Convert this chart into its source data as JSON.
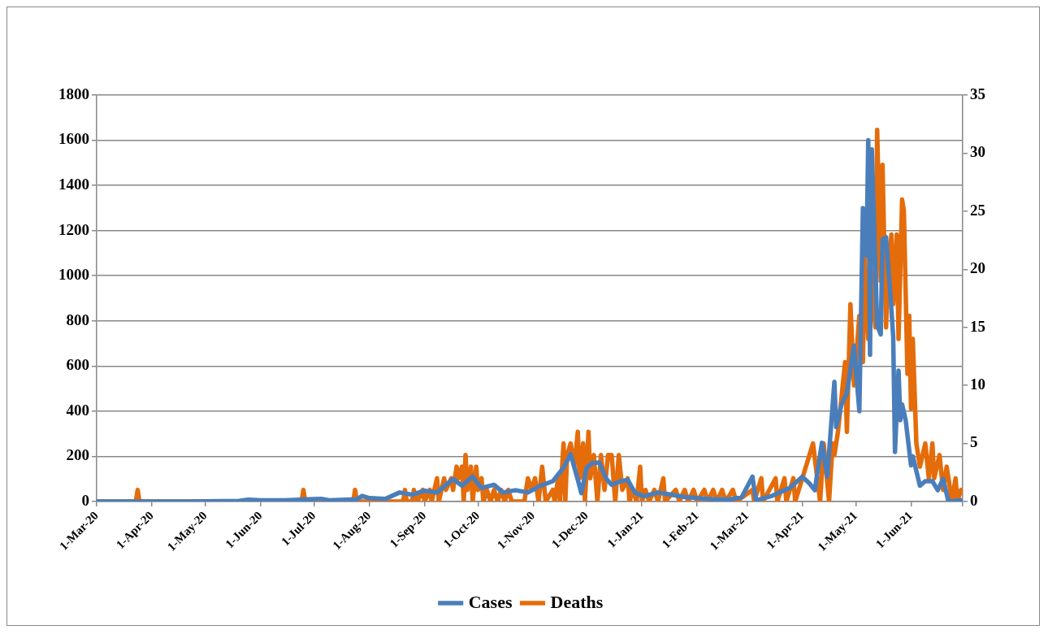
{
  "chart_data": {
    "type": "line",
    "grid": "y",
    "legend": "bottom",
    "marker": "none",
    "line_style": "solid",
    "xlim": [
      "2020-03-01",
      "2021-06-30"
    ],
    "xticks": [
      {
        "value": "2020-03-01",
        "label": "1-Mar-20"
      },
      {
        "value": "2020-04-01",
        "label": "1-Apr-20"
      },
      {
        "value": "2020-05-01",
        "label": "1-May-20"
      },
      {
        "value": "2020-06-01",
        "label": "1-Jun-20"
      },
      {
        "value": "2020-07-01",
        "label": "1-Jul-20"
      },
      {
        "value": "2020-08-01",
        "label": "1-Aug-20"
      },
      {
        "value": "2020-09-01",
        "label": "1-Sep-20"
      },
      {
        "value": "2020-10-01",
        "label": "1-Oct-20"
      },
      {
        "value": "2020-11-01",
        "label": "1-Nov-20"
      },
      {
        "value": "2020-12-01",
        "label": "1-Dec-20"
      },
      {
        "value": "2021-01-01",
        "label": "1-Jan-21"
      },
      {
        "value": "2021-02-01",
        "label": "1-Feb-21"
      },
      {
        "value": "2021-03-01",
        "label": "1-Mar-21"
      },
      {
        "value": "2021-04-01",
        "label": "1-Apr-21"
      },
      {
        "value": "2021-05-01",
        "label": "1-May-21"
      },
      {
        "value": "2021-06-01",
        "label": "1-Jun-21"
      },
      {
        "value": "2021-06-30",
        "label": null
      }
    ],
    "ylim": [
      0,
      1800
    ],
    "yticks": [
      0,
      200,
      400,
      600,
      800,
      1000,
      1200,
      1400,
      1600,
      1800
    ],
    "y2lim": [
      0,
      35
    ],
    "y2ticks": [
      0,
      5,
      10,
      15,
      20,
      25,
      30,
      35
    ],
    "series": [
      {
        "name": "Cases",
        "color": "#4a7ebb",
        "x": [
          "2020-03-01",
          "2020-04-20",
          "2020-05-20",
          "2020-05-25",
          "2020-06-01",
          "2020-06-15",
          "2020-06-28",
          "2020-07-05",
          "2020-07-10",
          "2020-07-25",
          "2020-07-28",
          "2020-08-01",
          "2020-08-10",
          "2020-08-18",
          "2020-08-25",
          "2020-09-01",
          "2020-09-08",
          "2020-09-17",
          "2020-09-22",
          "2020-09-28",
          "2020-10-03",
          "2020-10-10",
          "2020-10-15",
          "2020-10-22",
          "2020-10-29",
          "2020-11-05",
          "2020-11-12",
          "2020-11-18",
          "2020-11-22",
          "2020-11-26",
          "2020-11-28",
          "2020-12-01",
          "2020-12-04",
          "2020-12-08",
          "2020-12-12",
          "2020-12-15",
          "2020-12-20",
          "2020-12-24",
          "2020-12-28",
          "2021-01-02",
          "2021-01-10",
          "2021-01-18",
          "2021-01-25",
          "2021-02-01",
          "2021-02-10",
          "2021-02-20",
          "2021-02-26",
          "2021-03-04",
          "2021-03-06",
          "2021-03-15",
          "2021-03-25",
          "2021-04-01",
          "2021-04-05",
          "2021-04-08",
          "2021-04-12",
          "2021-04-15",
          "2021-04-19",
          "2021-04-20",
          "2021-04-23",
          "2021-04-26",
          "2021-04-30",
          "2021-05-03",
          "2021-05-05",
          "2021-05-07",
          "2021-05-08",
          "2021-05-09",
          "2021-05-10",
          "2021-05-13",
          "2021-05-15",
          "2021-05-16",
          "2021-05-18",
          "2021-05-21",
          "2021-05-22",
          "2021-05-23",
          "2021-05-25",
          "2021-05-26",
          "2021-05-27",
          "2021-05-29",
          "2021-06-01",
          "2021-06-02",
          "2021-06-06",
          "2021-06-09",
          "2021-06-13",
          "2021-06-16",
          "2021-06-19",
          "2021-06-22",
          "2021-06-29"
        ],
        "values": [
          0,
          0,
          3,
          8,
          5,
          5,
          10,
          12,
          5,
          10,
          25,
          15,
          12,
          40,
          30,
          48,
          40,
          100,
          70,
          110,
          60,
          74,
          40,
          50,
          40,
          70,
          90,
          150,
          210,
          96,
          37,
          150,
          170,
          173,
          100,
          74,
          90,
          96,
          40,
          23,
          40,
          30,
          20,
          15,
          10,
          10,
          20,
          110,
          5,
          25,
          60,
          110,
          80,
          50,
          260,
          110,
          530,
          330,
          430,
          480,
          690,
          400,
          1300,
          1090,
          1600,
          650,
          1560,
          780,
          740,
          1160,
          1170,
          850,
          730,
          220,
          580,
          360,
          430,
          360,
          160,
          200,
          70,
          90,
          90,
          50,
          100,
          0,
          5
        ]
      },
      {
        "name": "Deaths",
        "color": "#e46c0a",
        "axis": "y2",
        "x": [
          "2020-03-01",
          "2020-03-23",
          "2020-03-24",
          "2020-03-25",
          "2020-06-24",
          "2020-06-25",
          "2020-06-26",
          "2020-07-23",
          "2020-07-24",
          "2020-07-25",
          "2020-08-20",
          "2020-08-21",
          "2020-08-22",
          "2020-08-25",
          "2020-08-26",
          "2020-08-28",
          "2020-08-31",
          "2020-09-01",
          "2020-09-04",
          "2020-09-05",
          "2020-09-08",
          "2020-09-09",
          "2020-09-12",
          "2020-09-13",
          "2020-09-16",
          "2020-09-17",
          "2020-09-19",
          "2020-09-20",
          "2020-09-22",
          "2020-09-23",
          "2020-09-24",
          "2020-09-25",
          "2020-09-27",
          "2020-09-28",
          "2020-09-30",
          "2020-10-01",
          "2020-10-03",
          "2020-10-04",
          "2020-10-06",
          "2020-10-08",
          "2020-10-10",
          "2020-10-12",
          "2020-10-14",
          "2020-10-16",
          "2020-10-18",
          "2020-10-20",
          "2020-10-27",
          "2020-10-29",
          "2020-10-31",
          "2020-11-02",
          "2020-11-04",
          "2020-11-06",
          "2020-11-08",
          "2020-11-12",
          "2020-11-13",
          "2020-11-15",
          "2020-11-16",
          "2020-11-18",
          "2020-11-19",
          "2020-11-20",
          "2020-11-22",
          "2020-11-24",
          "2020-11-26",
          "2020-11-27",
          "2020-11-29",
          "2020-11-30",
          "2020-12-02",
          "2020-12-03",
          "2020-12-05",
          "2020-12-07",
          "2020-12-09",
          "2020-12-11",
          "2020-12-13",
          "2020-12-15",
          "2020-12-17",
          "2020-12-19",
          "2020-12-21",
          "2020-12-24",
          "2020-12-25",
          "2020-12-27",
          "2020-12-29",
          "2020-12-31",
          "2021-01-01",
          "2021-01-03",
          "2021-01-05",
          "2021-01-08",
          "2021-01-10",
          "2021-01-13",
          "2021-01-14",
          "2021-01-20",
          "2021-01-22",
          "2021-01-25",
          "2021-01-27",
          "2021-01-30",
          "2021-02-01",
          "2021-02-05",
          "2021-02-07",
          "2021-02-10",
          "2021-02-12",
          "2021-02-15",
          "2021-02-17",
          "2021-02-21",
          "2021-02-23",
          "2021-03-04",
          "2021-03-05",
          "2021-03-09",
          "2021-03-10",
          "2021-03-17",
          "2021-03-18",
          "2021-03-22",
          "2021-03-23",
          "2021-03-27",
          "2021-03-28",
          "2021-04-07",
          "2021-04-11",
          "2021-04-13",
          "2021-04-16",
          "2021-04-18",
          "2021-04-19",
          "2021-04-21",
          "2021-04-23",
          "2021-04-25",
          "2021-04-26",
          "2021-04-28",
          "2021-04-30",
          "2021-05-03",
          "2021-05-05",
          "2021-05-06",
          "2021-05-08",
          "2021-05-09",
          "2021-05-12",
          "2021-05-13",
          "2021-05-15",
          "2021-05-16",
          "2021-05-18",
          "2021-05-19",
          "2021-05-21",
          "2021-05-22",
          "2021-05-24",
          "2021-05-25",
          "2021-05-27",
          "2021-05-28",
          "2021-05-30",
          "2021-05-31",
          "2021-06-01",
          "2021-06-02",
          "2021-06-04",
          "2021-06-06",
          "2021-06-09",
          "2021-06-11",
          "2021-06-13",
          "2021-06-14",
          "2021-06-17",
          "2021-06-19",
          "2021-06-21",
          "2021-06-24",
          "2021-06-26",
          "2021-06-27",
          "2021-06-29"
        ],
        "values": [
          0,
          0,
          1,
          0,
          0,
          1,
          0,
          0,
          1,
          0,
          0,
          1,
          0,
          0,
          1,
          0,
          1,
          0,
          1,
          0,
          2,
          0,
          2,
          1,
          2,
          1,
          3,
          2,
          3,
          0,
          4,
          1,
          3,
          0,
          3,
          1,
          2,
          0,
          1,
          0,
          1,
          0,
          1,
          0,
          1,
          0,
          0,
          2,
          1,
          2,
          0,
          3,
          0,
          1,
          0,
          2,
          0,
          5,
          0,
          4,
          5,
          3,
          6,
          2,
          5,
          0,
          6,
          2,
          4,
          0,
          4,
          1,
          4,
          4,
          0,
          4,
          1,
          2,
          0,
          1,
          0,
          3,
          0,
          1,
          0,
          1,
          0,
          2,
          0,
          1,
          0,
          1,
          0,
          1,
          0,
          1,
          0,
          1,
          0,
          1,
          0,
          1,
          0,
          1,
          0,
          2,
          0,
          2,
          0,
          2,
          0,
          2,
          0,
          5,
          0,
          5,
          0,
          5,
          4,
          6,
          9,
          12,
          6,
          17,
          10,
          16,
          12,
          21,
          14,
          21,
          15,
          32,
          19,
          29,
          15,
          19,
          23,
          17,
          23,
          14,
          26,
          25,
          11,
          16,
          8,
          14,
          5,
          3,
          5,
          2,
          5,
          2,
          4,
          1,
          3,
          0,
          2,
          0,
          1
        ]
      }
    ]
  }
}
